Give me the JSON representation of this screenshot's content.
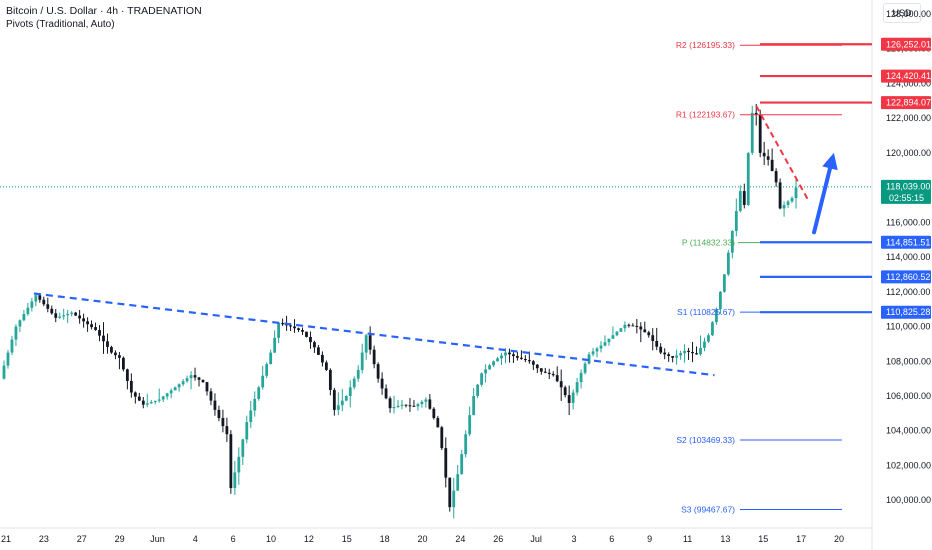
{
  "header": {
    "title": "Bitcoin / U.S. Dollar · 4h · TRADENATION",
    "indicator": "Pivots (Traditional, Auto)",
    "currency": "USD"
  },
  "colors": {
    "up": "#26a69a",
    "down": "#131722",
    "resistance": "#f23645",
    "support": "#2962ff",
    "pivot": "#4caf50",
    "current_price": "#089981",
    "trendline": "#2962ff",
    "arrow": "#2962ff"
  },
  "chart_data": {
    "type": "candlestick",
    "title": "Bitcoin / U.S. Dollar · 4h · TRADENATION",
    "ylim": [
      98400,
      128800
    ],
    "y_ticks": [
      "100,000.00",
      "102,000.00",
      "104,000.00",
      "106,000.00",
      "108,000.00",
      "110,000.00",
      "112,000.00",
      "114,000.00",
      "116,000.00",
      "118,000.00",
      "120,000.00",
      "122,000.00",
      "124,000.00",
      "126,000.00",
      "128,000.00"
    ],
    "x_ticks": [
      "21",
      "23",
      "27",
      "29",
      "Jun",
      "4",
      "6",
      "10",
      "12",
      "15",
      "18",
      "20",
      "24",
      "26",
      "Jul",
      "3",
      "6",
      "9",
      "11",
      "13",
      "15",
      "17",
      "20"
    ],
    "price_path": [
      [
        0,
        107000
      ],
      [
        4,
        110000
      ],
      [
        9,
        111800
      ],
      [
        14,
        110500
      ],
      [
        18,
        110800
      ],
      [
        24,
        109800
      ],
      [
        28,
        108500
      ],
      [
        30,
        108200
      ],
      [
        33,
        106200
      ],
      [
        36,
        105500
      ],
      [
        40,
        105800
      ],
      [
        44,
        106500
      ],
      [
        48,
        107200
      ],
      [
        51,
        106800
      ],
      [
        54,
        105200
      ],
      [
        57,
        103800
      ],
      [
        58,
        100700
      ],
      [
        60,
        102500
      ],
      [
        62,
        104500
      ],
      [
        65,
        106500
      ],
      [
        68,
        108500
      ],
      [
        70,
        110200
      ],
      [
        73,
        110000
      ],
      [
        76,
        109700
      ],
      [
        79,
        108800
      ],
      [
        82,
        107500
      ],
      [
        84,
        105200
      ],
      [
        87,
        106000
      ],
      [
        90,
        107500
      ],
      [
        92,
        109500
      ],
      [
        95,
        107000
      ],
      [
        98,
        105300
      ],
      [
        101,
        105500
      ],
      [
        104,
        105400
      ],
      [
        107,
        105800
      ],
      [
        110,
        104200
      ],
      [
        111,
        103000
      ],
      [
        113,
        99600
      ],
      [
        115,
        101500
      ],
      [
        117,
        103800
      ],
      [
        119,
        106000
      ],
      [
        121,
        107300
      ],
      [
        124,
        108000
      ],
      [
        127,
        108500
      ],
      [
        130,
        108200
      ],
      [
        133,
        108000
      ],
      [
        136,
        107400
      ],
      [
        139,
        107200
      ],
      [
        141,
        106500
      ],
      [
        143,
        105600
      ],
      [
        145,
        106800
      ],
      [
        148,
        108400
      ],
      [
        151,
        108900
      ],
      [
        154,
        109500
      ],
      [
        157,
        110100
      ],
      [
        160,
        110000
      ],
      [
        163,
        109500
      ],
      [
        166,
        108500
      ],
      [
        169,
        108200
      ],
      [
        172,
        108600
      ],
      [
        175,
        108400
      ],
      [
        178,
        109500
      ],
      [
        180,
        111000
      ],
      [
        182,
        113000
      ],
      [
        184,
        115500
      ],
      [
        186,
        117800
      ],
      [
        187,
        117000
      ],
      [
        188,
        120000
      ],
      [
        189,
        122300
      ],
      [
        190,
        122200
      ],
      [
        191,
        120000
      ],
      [
        193,
        119600
      ],
      [
        195,
        118300
      ],
      [
        196,
        116800
      ],
      [
        197,
        117000
      ],
      [
        199,
        117400
      ],
      [
        200,
        118000
      ]
    ],
    "pivot_levels": [
      {
        "label": "R2 (126195.33)",
        "value": 126195.33,
        "kind": "resistance"
      },
      {
        "label": "R1 (122193.67)",
        "value": 122193.67,
        "kind": "resistance"
      },
      {
        "label": "P (114832.33)",
        "value": 114832.33,
        "kind": "pivot"
      },
      {
        "label": "S1 (110825.67)",
        "value": 110825.67,
        "kind": "support"
      },
      {
        "label": "S2 (103469.33)",
        "value": 103469.33,
        "kind": "support"
      },
      {
        "label": "S3 (99467.67)",
        "value": 99467.67,
        "kind": "support"
      }
    ],
    "resistance_lines": [
      126252.01,
      124420.41,
      122894.07
    ],
    "support_lines": [
      114851.51,
      112860.52,
      110825.28
    ],
    "current_price": 118039.0,
    "countdown": "02:55:15",
    "price_tags": [
      {
        "text": "126,252.01",
        "value": 126252.01,
        "kind": "resistance"
      },
      {
        "text": "124,420.41",
        "value": 124420.41,
        "kind": "resistance"
      },
      {
        "text": "122,894.07",
        "value": 122894.07,
        "kind": "resistance"
      },
      {
        "text": "118,039.00",
        "value": 118039.0,
        "kind": "current"
      },
      {
        "text": "114,851.51",
        "value": 114851.51,
        "kind": "support"
      },
      {
        "text": "112,860.52",
        "value": 112860.52,
        "kind": "support"
      },
      {
        "text": "110,825.28",
        "value": 110825.28,
        "kind": "support"
      }
    ],
    "trendline": [
      [
        0,
        111900
      ],
      [
        178,
        107200
      ]
    ],
    "red_trendline": [
      [
        189,
        122700
      ],
      [
        202,
        117300
      ]
    ],
    "arrow": [
      [
        196,
        116000
      ],
      [
        206,
        120000
      ]
    ]
  }
}
